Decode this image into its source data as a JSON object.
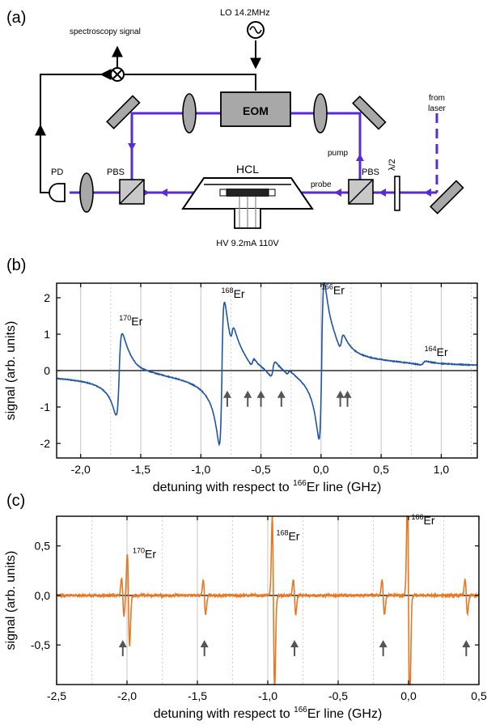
{
  "panels": {
    "a": "(a)",
    "b": "(b)",
    "c": "(c)"
  },
  "setup": {
    "lo": "LO 14.2MHz",
    "spectroscopy": "spectroscopy signal",
    "eom": "EOM",
    "from_laser_1": "from",
    "from_laser_2": "laser",
    "pump": "pump",
    "probe": "probe",
    "pbs_left": "PBS",
    "pbs_right": "PBS",
    "halfwave": "λ/2",
    "pd": "PD",
    "hcl": "HCL",
    "hv": "HV 9.2mA 110V"
  },
  "chart_data": [
    {
      "type": "line",
      "panel": "(b)",
      "xlabel_pre": "detuning with respect to ",
      "xlabel_sup": "166",
      "xlabel_post": "Er line (GHz)",
      "ylabel": "signal (arb. units)",
      "xlim": [
        -2.2,
        1.3
      ],
      "ylim": [
        -2.4,
        2.4
      ],
      "xticks": [
        -2.0,
        -1.5,
        -1.0,
        -0.5,
        0.0,
        0.5,
        1.0
      ],
      "xtick_labels": [
        "-2,0",
        "-1,5",
        "-1,0",
        "-0,5",
        "0,0",
        "0,5",
        "1,0"
      ],
      "yticks": [
        -2,
        -1,
        0,
        1,
        2
      ],
      "ytick_labels": [
        "-2",
        "-1",
        "0",
        "1",
        "2"
      ],
      "grid": "vertical",
      "color": "#1f55a5",
      "isotopes": [
        {
          "mass": "170",
          "label": "Er",
          "x": -1.68,
          "y": 1.25
        },
        {
          "mass": "168",
          "label": "Er",
          "x": -0.83,
          "y": 2.0
        },
        {
          "mass": "166",
          "label": "Er",
          "x": 0.0,
          "y": 2.1
        },
        {
          "mass": "164",
          "label": "Er",
          "x": 0.86,
          "y": 0.4
        }
      ],
      "arrows_x": [
        -0.78,
        -0.61,
        -0.5,
        -0.33,
        0.16,
        0.22
      ],
      "features": [
        {
          "x0": -1.68,
          "a": 1.05,
          "w": 0.025,
          "tail": 0.3
        },
        {
          "x0": -0.825,
          "a": 1.85,
          "w": 0.022,
          "tail": 0.55
        },
        {
          "x0": -0.74,
          "a": 0.25,
          "w": 0.02,
          "tail": 0.3
        },
        {
          "x0": -0.57,
          "a": 0.1,
          "w": 0.015,
          "tail": 0.2
        },
        {
          "x0": -0.4,
          "a": 0.2,
          "w": 0.02,
          "tail": 0.35
        },
        {
          "x0": -0.27,
          "a": 0.06,
          "w": 0.015,
          "tail": 0.2
        },
        {
          "x0": 0.005,
          "a": 2.0,
          "w": 0.022,
          "tail": 0.55
        },
        {
          "x0": 0.17,
          "a": 0.22,
          "w": 0.02,
          "tail": 0.3
        },
        {
          "x0": 0.85,
          "a": 0.05,
          "w": 0.025,
          "tail": 0.3
        }
      ]
    },
    {
      "type": "line",
      "panel": "(c)",
      "xlabel_pre": "detuning with respect to ",
      "xlabel_sup": "166",
      "xlabel_post": "Er line (GHz)",
      "ylabel": "signal (arb. units)",
      "xlim": [
        -2.5,
        0.5
      ],
      "ylim": [
        -0.9,
        0.8
      ],
      "xticks": [
        -2.5,
        -2.0,
        -1.5,
        -1.0,
        -0.5,
        0.0,
        0.5
      ],
      "xtick_labels": [
        "-2,5",
        "-2,0",
        "-1,5",
        "-1,0",
        "-0,5",
        "0,0",
        "0,5"
      ],
      "yticks": [
        -0.5,
        0.0,
        0.5
      ],
      "ytick_labels": [
        "-0,5",
        "0,0",
        "0,5"
      ],
      "grid": "vertical",
      "color": "#e87722",
      "isotopes": [
        {
          "mass": "170",
          "label": "Er",
          "x": -1.96,
          "y": 0.38
        },
        {
          "mass": "168",
          "label": "Er",
          "x": -0.94,
          "y": 0.56
        },
        {
          "mass": "166",
          "label": "Er",
          "x": 0.02,
          "y": 0.72
        }
      ],
      "arrows_x": [
        -2.03,
        -1.45,
        -0.81,
        -0.18,
        0.41
      ],
      "features": [
        {
          "x0": -2.03,
          "a": 0.13,
          "w": 0.008
        },
        {
          "x0": -1.99,
          "a": 0.32,
          "w": 0.008
        },
        {
          "x0": -1.45,
          "a": 0.12,
          "w": 0.008
        },
        {
          "x0": -0.96,
          "a": 0.6,
          "w": 0.008
        },
        {
          "x0": -0.81,
          "a": 0.12,
          "w": 0.008
        },
        {
          "x0": -0.18,
          "a": 0.12,
          "w": 0.008
        },
        {
          "x0": 0.0,
          "a": 0.75,
          "w": 0.008
        },
        {
          "x0": 0.41,
          "a": 0.12,
          "w": 0.008
        }
      ]
    }
  ]
}
